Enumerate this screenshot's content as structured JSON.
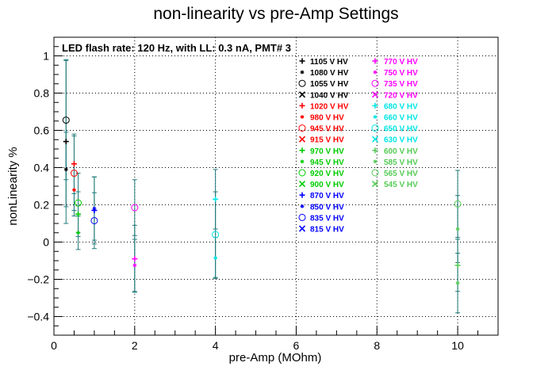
{
  "chart_data": {
    "type": "scatter",
    "title": "non-linearity vs pre-Amp Settings",
    "xlabel": "pre-Amp (MOhm)",
    "ylabel": "nonLinearity %",
    "xlim": [
      0,
      11
    ],
    "ylim": [
      -0.5,
      1.1
    ],
    "x_ticks": [
      0,
      2,
      4,
      6,
      8,
      10
    ],
    "y_ticks": [
      -0.4,
      -0.2,
      0,
      0.2,
      0.4,
      0.6,
      0.8,
      1
    ],
    "x_tick_labels": [
      "0",
      "2",
      "4",
      "6",
      "8",
      "10"
    ],
    "y_tick_labels": [
      "−0.4",
      "−0.2",
      "0",
      "0.2",
      "0.4",
      "0.6",
      "0.8",
      "1"
    ],
    "grid": true,
    "legend_position": "top-right",
    "annotation": "LED flash rate: 120 Hz, with LL: 0.3 nA, PMT# 3",
    "error_bar_color": "#1f7a7a",
    "series": [
      {
        "name": "1105 V HV",
        "color": "#000000",
        "marker": "plus",
        "points": [
          [
            0.3,
            0.54,
            0.44
          ]
        ]
      },
      {
        "name": "1080 V HV",
        "color": "#000000",
        "marker": "star",
        "points": [
          [
            0.3,
            0.39,
            0.2
          ]
        ]
      },
      {
        "name": "1055 V HV",
        "color": "#000000",
        "marker": "circle",
        "points": [
          [
            0.3,
            0.655,
            0.32
          ]
        ]
      },
      {
        "name": "1040 V HV",
        "color": "#000000",
        "marker": "x",
        "points": []
      },
      {
        "name": "1020 V HV",
        "color": "#ff0000",
        "marker": "plus",
        "points": [
          [
            0.5,
            0.42,
            0.16
          ]
        ]
      },
      {
        "name": "980 V HV",
        "color": "#ff0000",
        "marker": "star",
        "points": [
          [
            0.5,
            0.28,
            0.14
          ]
        ]
      },
      {
        "name": "945 V HV",
        "color": "#ff0000",
        "marker": "circle",
        "points": [
          [
            0.5,
            0.37,
            0.2
          ]
        ]
      },
      {
        "name": "915 V HV",
        "color": "#ff0000",
        "marker": "x",
        "points": []
      },
      {
        "name": "970 V HV",
        "color": "#00cc00",
        "marker": "plus",
        "points": [
          [
            0.6,
            0.15,
            0.12
          ]
        ]
      },
      {
        "name": "945 V HV",
        "color": "#00cc00",
        "marker": "star",
        "points": [
          [
            0.6,
            0.05,
            0.09
          ]
        ]
      },
      {
        "name": "920 V HV",
        "color": "#00cc00",
        "marker": "circle",
        "points": [
          [
            0.6,
            0.21,
            0.16
          ]
        ]
      },
      {
        "name": "900 V HV",
        "color": "#00cc00",
        "marker": "x",
        "points": []
      },
      {
        "name": "870 V HV",
        "color": "#0000ff",
        "marker": "plus",
        "points": [
          [
            1.0,
            0.17,
            0.18
          ]
        ]
      },
      {
        "name": "850 V HV",
        "color": "#0000ff",
        "marker": "star",
        "points": [
          [
            1.0,
            0.18,
            0.17
          ]
        ]
      },
      {
        "name": "835 V HV",
        "color": "#0000ff",
        "marker": "circle",
        "points": [
          [
            1.0,
            0.115,
            0.15
          ]
        ]
      },
      {
        "name": "815 V HV",
        "color": "#0000ff",
        "marker": "x",
        "points": []
      },
      {
        "name": "770 V HV",
        "color": "#ff00ff",
        "marker": "plus",
        "points": [
          [
            2.0,
            -0.09,
            0.18
          ]
        ]
      },
      {
        "name": "750 V HV",
        "color": "#ff00ff",
        "marker": "star",
        "points": [
          [
            2.0,
            -0.125,
            0.14
          ]
        ]
      },
      {
        "name": "735 V HV",
        "color": "#ff00ff",
        "marker": "circle",
        "points": [
          [
            2.0,
            0.185,
            0.15
          ]
        ]
      },
      {
        "name": "720 V HV",
        "color": "#ff00ff",
        "marker": "x",
        "points": []
      },
      {
        "name": "680 V HV",
        "color": "#00e5e5",
        "marker": "plus",
        "points": [
          [
            4.0,
            0.23,
            0.16
          ]
        ]
      },
      {
        "name": "660 V HV",
        "color": "#00e5e5",
        "marker": "star",
        "points": [
          [
            4.0,
            -0.085,
            0.11
          ]
        ]
      },
      {
        "name": "650 V HV",
        "color": "#00e5e5",
        "marker": "circle",
        "points": [
          [
            4.0,
            0.04,
            0.23
          ]
        ]
      },
      {
        "name": "630 V HV",
        "color": "#00e5e5",
        "marker": "x",
        "points": []
      },
      {
        "name": "600 V HV",
        "color": "#55cc55",
        "marker": "plus",
        "points": [
          [
            10.0,
            -0.125,
            0.14
          ]
        ]
      },
      {
        "name": "585 V HV",
        "color": "#55cc55",
        "marker": "star",
        "points": [
          [
            10.0,
            -0.22,
            0.16
          ],
          [
            10.0,
            0.07,
            0.18
          ]
        ]
      },
      {
        "name": "565 V HV",
        "color": "#55cc55",
        "marker": "circle",
        "points": [
          [
            10.0,
            0.205,
            0.18
          ]
        ]
      },
      {
        "name": "545 V HV",
        "color": "#55cc55",
        "marker": "x",
        "points": []
      }
    ]
  }
}
